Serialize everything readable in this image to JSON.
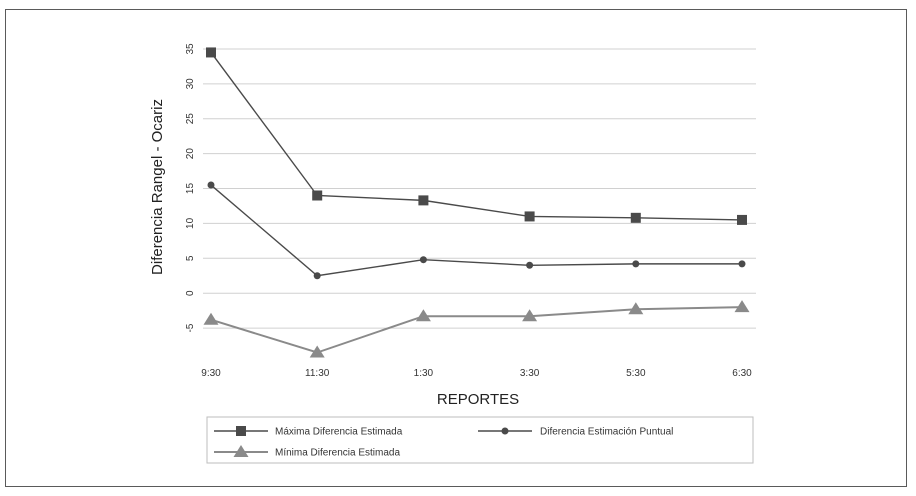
{
  "chart_data": {
    "type": "line",
    "xlabel": "REPORTES",
    "ylabel": "Diferencia Rangel - Ocariz",
    "categories": [
      "9:30",
      "11:30",
      "1:30",
      "3:30",
      "5:30",
      "6:30"
    ],
    "yticks": [
      -5,
      0,
      5,
      10,
      15,
      20,
      25,
      30,
      35
    ],
    "ylim": [
      -9,
      37
    ],
    "grid": true,
    "legend_position": "bottom",
    "series": [
      {
        "name": "Máxima Diferencia Estimada",
        "marker": "square",
        "color": "#4a4a4a",
        "values": [
          34.5,
          14.0,
          13.3,
          11.0,
          10.8,
          10.5
        ]
      },
      {
        "name": "Diferencia Estimación Puntual",
        "marker": "circle",
        "color": "#4a4a4a",
        "values": [
          15.5,
          2.5,
          4.8,
          4.0,
          4.2,
          4.2
        ]
      },
      {
        "name": "Mínima Diferencia Estimada",
        "marker": "triangle",
        "color": "#8a8a8a",
        "values": [
          -3.8,
          -8.5,
          -3.3,
          -3.3,
          -2.3,
          -2.0
        ]
      }
    ]
  }
}
